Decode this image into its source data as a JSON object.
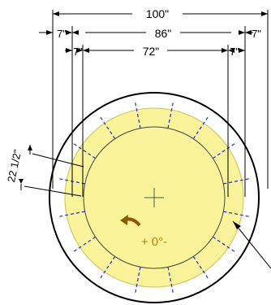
{
  "dimensions": {
    "outer": "100\"",
    "middle": "86\"",
    "inner": "72\"",
    "offset_left_outer": "7\"",
    "offset_right_outer": "7\"",
    "offset_left_inner": "7\"",
    "offset_right_inner": "7\"",
    "angle_label": "22 1/2\""
  },
  "rotation_label": "+ 0°-",
  "colors": {
    "fill": "#f9f39a",
    "fill_stroke": "#c9c35a",
    "tick": "#2a2ad8",
    "arrow": "#8a5a00",
    "rotation_text": "#b8860b",
    "line": "#000000"
  },
  "icons": {
    "center_mark": "crosshair-icon",
    "rotation_arrow": "curved-arrow-icon"
  }
}
